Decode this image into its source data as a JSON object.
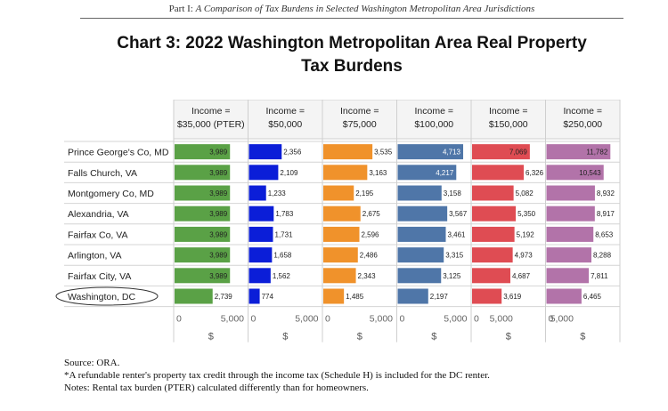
{
  "header": {
    "part": "Part I:",
    "subtitle": "A Comparison of Tax Burdens in Selected Washington Metropolitan Area Jurisdictions"
  },
  "chart_data": {
    "type": "bar",
    "orientation": "horizontal",
    "title_line1": "Chart 3: 2022 Washington Metropolitan Area Real Property",
    "title_line2": "Tax Burdens",
    "categories": [
      "Prince George's Co, MD",
      "Falls Church, VA",
      "Montgomery Co, MD",
      "Alexandria, VA",
      "Fairfax Co, VA",
      "Arlington, VA",
      "Fairfax City, VA",
      "Washington, DC"
    ],
    "highlight_category": "Washington, DC",
    "xlabel": "$",
    "panels": [
      {
        "label_line1": "Income =",
        "label_line2": "$35,000  (PTER)",
        "color": "#5aa146",
        "axis_max": 5000,
        "values": [
          3989,
          3989,
          3989,
          3989,
          3989,
          3989,
          3989,
          2739
        ],
        "value_labels": [
          "3,989",
          "3,989",
          "3,989",
          "3,989",
          "3,989",
          "3,989",
          "3,989",
          "2,739"
        ],
        "ticks": [
          "0",
          "5,000"
        ]
      },
      {
        "label_line1": "Income =",
        "label_line2": "$50,000",
        "color": "#0b1ed8",
        "axis_max": 5000,
        "values": [
          2356,
          2109,
          1233,
          1783,
          1731,
          1658,
          1562,
          774
        ],
        "value_labels": [
          "2,356",
          "2,109",
          "1,233",
          "1,783",
          "1,731",
          "1,658",
          "1,562",
          "774"
        ],
        "ticks": [
          "0",
          "5,000"
        ]
      },
      {
        "label_line1": "Income =",
        "label_line2": "$75,000",
        "color": "#f0922b",
        "axis_max": 5000,
        "values": [
          3535,
          3163,
          2195,
          2675,
          2596,
          2486,
          2343,
          1485
        ],
        "value_labels": [
          "3,535",
          "3,163",
          "2,195",
          "2,675",
          "2,596",
          "2,486",
          "2,343",
          "1,485"
        ],
        "ticks": [
          "0",
          "5,000"
        ]
      },
      {
        "label_line1": "Income =",
        "label_line2": "$100,000",
        "color": "#4f76a8",
        "axis_max": 5000,
        "values": [
          4713,
          4217,
          3158,
          3567,
          3461,
          3315,
          3125,
          2197
        ],
        "value_labels": [
          "4,713",
          "4,217",
          "3,158",
          "3,567",
          "3,461",
          "3,315",
          "3,125",
          "2,197"
        ],
        "ticks": [
          "0",
          "5,000"
        ]
      },
      {
        "label_line1": "Income =",
        "label_line2": "$150,000",
        "color": "#df4c53",
        "axis_max": 8500,
        "values": [
          7069,
          6326,
          5082,
          5350,
          5192,
          4973,
          4687,
          3619
        ],
        "value_labels": [
          "7,069",
          "6,326",
          "5,082",
          "5,350",
          "5,192",
          "4,973",
          "4,687",
          "3,619"
        ],
        "ticks": [
          "0",
          "5,000"
        ]
      },
      {
        "label_line1": "Income =",
        "label_line2": "$250,000",
        "color": "#b273a9",
        "axis_max": 12800,
        "values": [
          11782,
          10543,
          8932,
          8917,
          8653,
          8288,
          7811,
          6465
        ],
        "value_labels": [
          "11,782",
          "10,543",
          "8,932",
          "8,917",
          "8,653",
          "8,288",
          "7,811",
          "6,465"
        ],
        "ticks": [
          "0",
          "5,000"
        ]
      }
    ]
  },
  "footnotes": {
    "source": "Source: ORA.",
    "note1": "*A refundable renter's property tax credit through the income tax (Schedule H) is included for the DC renter.",
    "note2": "Notes: Rental tax burden (PTER) calculated differently than for homeowners."
  }
}
